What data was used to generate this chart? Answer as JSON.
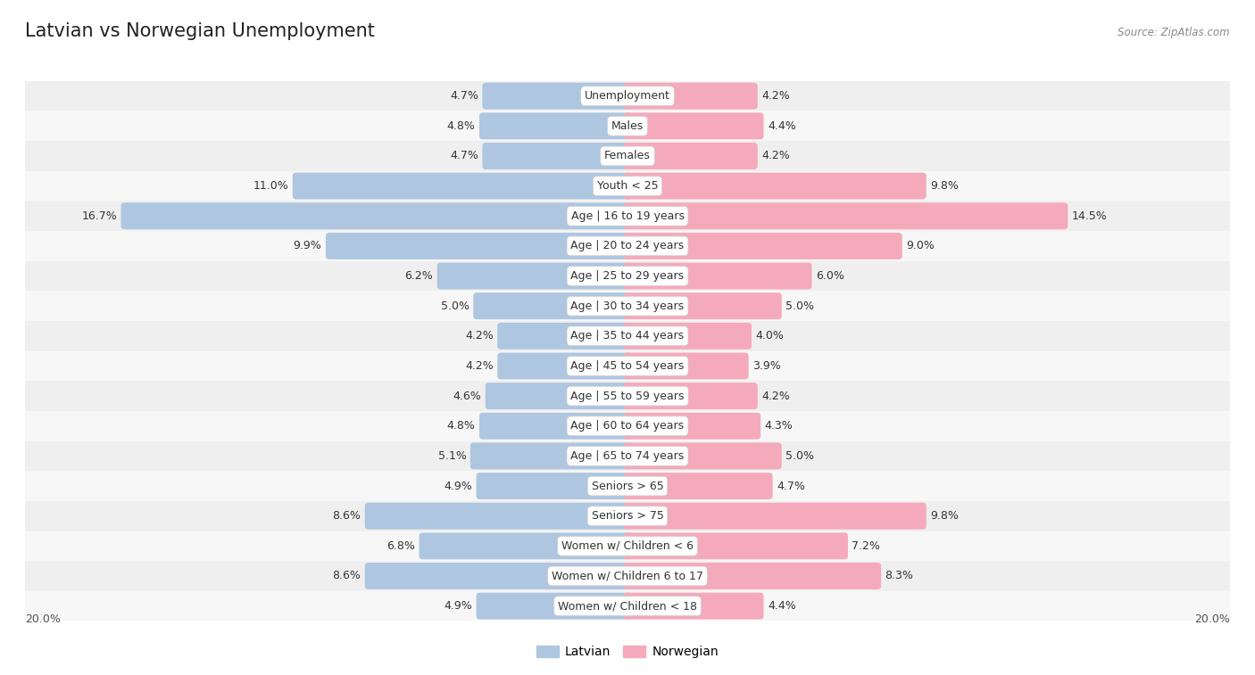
{
  "title": "Latvian vs Norwegian Unemployment",
  "source": "Source: ZipAtlas.com",
  "categories": [
    "Unemployment",
    "Males",
    "Females",
    "Youth < 25",
    "Age | 16 to 19 years",
    "Age | 20 to 24 years",
    "Age | 25 to 29 years",
    "Age | 30 to 34 years",
    "Age | 35 to 44 years",
    "Age | 45 to 54 years",
    "Age | 55 to 59 years",
    "Age | 60 to 64 years",
    "Age | 65 to 74 years",
    "Seniors > 65",
    "Seniors > 75",
    "Women w/ Children < 6",
    "Women w/ Children 6 to 17",
    "Women w/ Children < 18"
  ],
  "latvian": [
    4.7,
    4.8,
    4.7,
    11.0,
    16.7,
    9.9,
    6.2,
    5.0,
    4.2,
    4.2,
    4.6,
    4.8,
    5.1,
    4.9,
    8.6,
    6.8,
    8.6,
    4.9
  ],
  "norwegian": [
    4.2,
    4.4,
    4.2,
    9.8,
    14.5,
    9.0,
    6.0,
    5.0,
    4.0,
    3.9,
    4.2,
    4.3,
    5.0,
    4.7,
    9.8,
    7.2,
    8.3,
    4.4
  ],
  "max_val": 20.0,
  "latvian_color": "#aec6e0",
  "norwegian_color": "#f5aabc",
  "row_bg_even": "#efefef",
  "row_bg_odd": "#f7f7f7",
  "label_fontsize": 9,
  "value_fontsize": 9,
  "title_fontsize": 15
}
